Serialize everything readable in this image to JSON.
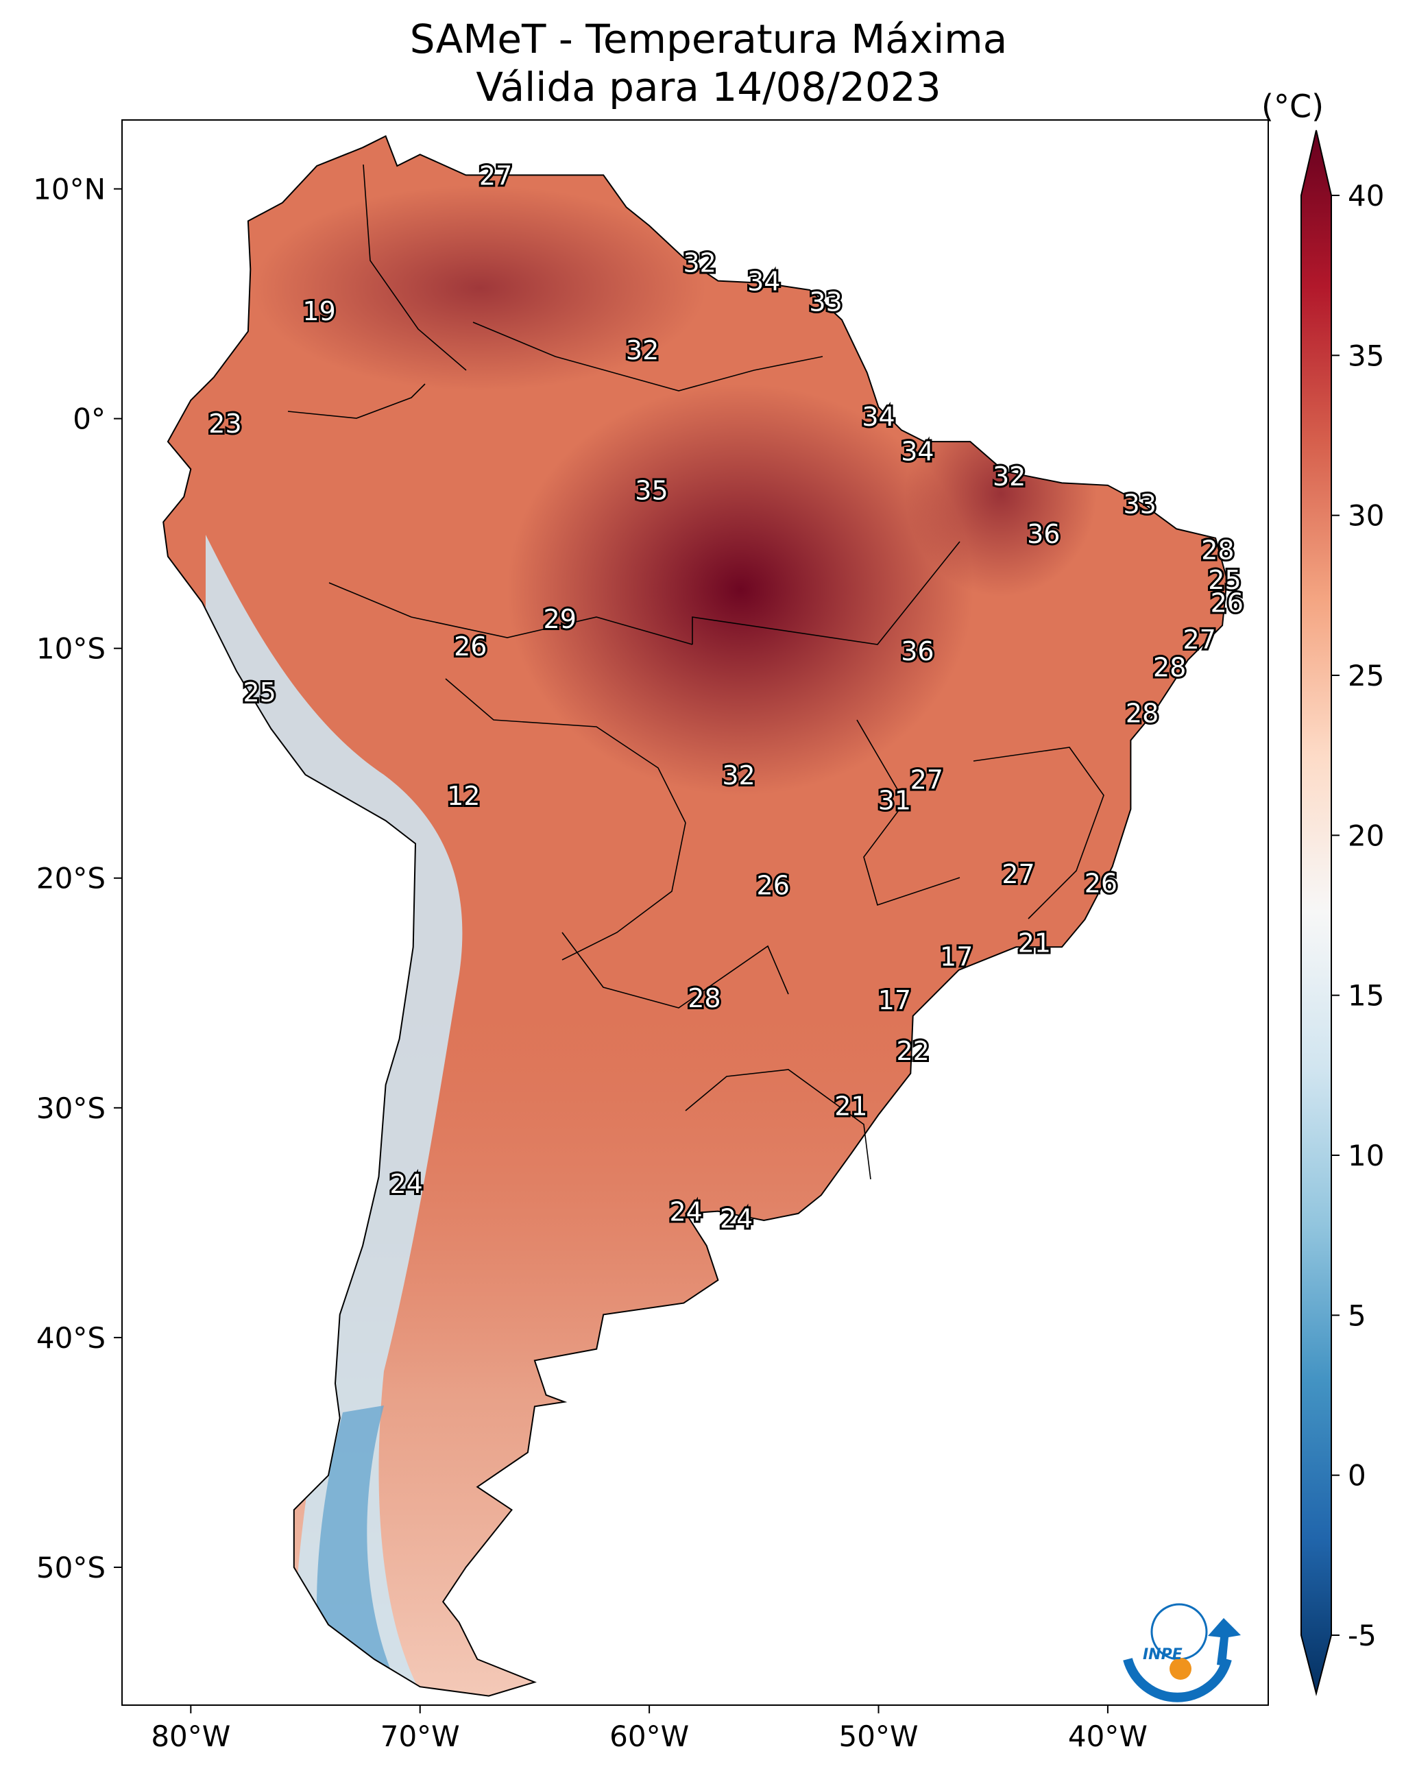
{
  "title": {
    "line1": "SAMeT - Temperatura Máxima",
    "line2": "Válida para 14/08/2023"
  },
  "colorbar": {
    "unit": "(°C)",
    "ticks": [
      "40",
      "35",
      "30",
      "25",
      "20",
      "15",
      "10",
      "5",
      "0",
      "-5"
    ],
    "tick_values": [
      40,
      35,
      30,
      25,
      20,
      15,
      10,
      5,
      0,
      -5
    ],
    "range": [
      -5,
      40
    ],
    "colors": [
      "#053061",
      "#2166ac",
      "#4393c3",
      "#92c5de",
      "#d1e5f0",
      "#f7f7f7",
      "#fddbc7",
      "#f4a582",
      "#d6604d",
      "#b2182b",
      "#67001f"
    ]
  },
  "axes": {
    "lon_labels": [
      "80°W",
      "70°W",
      "60°W",
      "50°W",
      "40°W"
    ],
    "lon_values": [
      -80,
      -70,
      -60,
      -50,
      -40
    ],
    "lat_labels": [
      "10°N",
      "0°",
      "10°S",
      "20°S",
      "30°S",
      "40°S",
      "50°S"
    ],
    "lat_values": [
      10,
      0,
      -10,
      -20,
      -30,
      -40,
      -50
    ],
    "lon_range": [
      -83,
      -33
    ],
    "lat_range": [
      -56,
      13
    ]
  },
  "logo": {
    "text": "INPE"
  },
  "station_values": [
    {
      "t": "27",
      "lon": -66.7,
      "lat": 10.5
    },
    {
      "t": "32",
      "lon": -57.8,
      "lat": 6.7
    },
    {
      "t": "34",
      "lon": -55.0,
      "lat": 5.9
    },
    {
      "t": "33",
      "lon": -52.3,
      "lat": 5.0
    },
    {
      "t": "19",
      "lon": -74.4,
      "lat": 4.6
    },
    {
      "t": "32",
      "lon": -60.3,
      "lat": 2.9
    },
    {
      "t": "34",
      "lon": -50.0,
      "lat": 0.0
    },
    {
      "t": "23",
      "lon": -78.5,
      "lat": -0.3
    },
    {
      "t": "34",
      "lon": -48.3,
      "lat": -1.5
    },
    {
      "t": "32",
      "lon": -44.3,
      "lat": -2.6
    },
    {
      "t": "35",
      "lon": -59.9,
      "lat": -3.2
    },
    {
      "t": "33",
      "lon": -38.6,
      "lat": -3.8
    },
    {
      "t": "36",
      "lon": -42.8,
      "lat": -5.1
    },
    {
      "t": "28",
      "lon": -35.2,
      "lat": -5.8
    },
    {
      "t": "25",
      "lon": -34.9,
      "lat": -7.1
    },
    {
      "t": "26",
      "lon": -34.8,
      "lat": -8.1
    },
    {
      "t": "29",
      "lon": -63.9,
      "lat": -8.8
    },
    {
      "t": "27",
      "lon": -36.0,
      "lat": -9.7
    },
    {
      "t": "26",
      "lon": -67.8,
      "lat": -10.0
    },
    {
      "t": "36",
      "lon": -48.3,
      "lat": -10.2
    },
    {
      "t": "28",
      "lon": -37.3,
      "lat": -10.9
    },
    {
      "t": "25",
      "lon": -77.0,
      "lat": -12.0
    },
    {
      "t": "28",
      "lon": -38.5,
      "lat": -12.9
    },
    {
      "t": "27",
      "lon": -47.9,
      "lat": -15.8
    },
    {
      "t": "32",
      "lon": -56.1,
      "lat": -15.6
    },
    {
      "t": "12",
      "lon": -68.1,
      "lat": -16.5
    },
    {
      "t": "31",
      "lon": -49.3,
      "lat": -16.7
    },
    {
      "t": "26",
      "lon": -54.6,
      "lat": -20.4
    },
    {
      "t": "27",
      "lon": -43.9,
      "lat": -19.9
    },
    {
      "t": "26",
      "lon": -40.3,
      "lat": -20.3
    },
    {
      "t": "21",
      "lon": -43.2,
      "lat": -22.9
    },
    {
      "t": "17",
      "lon": -46.6,
      "lat": -23.5
    },
    {
      "t": "28",
      "lon": -57.6,
      "lat": -25.3
    },
    {
      "t": "17",
      "lon": -49.3,
      "lat": -25.4
    },
    {
      "t": "22",
      "lon": -48.5,
      "lat": -27.6
    },
    {
      "t": "21",
      "lon": -51.2,
      "lat": -30.0
    },
    {
      "t": "24",
      "lon": -70.6,
      "lat": -33.4
    },
    {
      "t": "24",
      "lon": -58.4,
      "lat": -34.6
    },
    {
      "t": "24",
      "lon": -56.2,
      "lat": -34.9
    }
  ]
}
